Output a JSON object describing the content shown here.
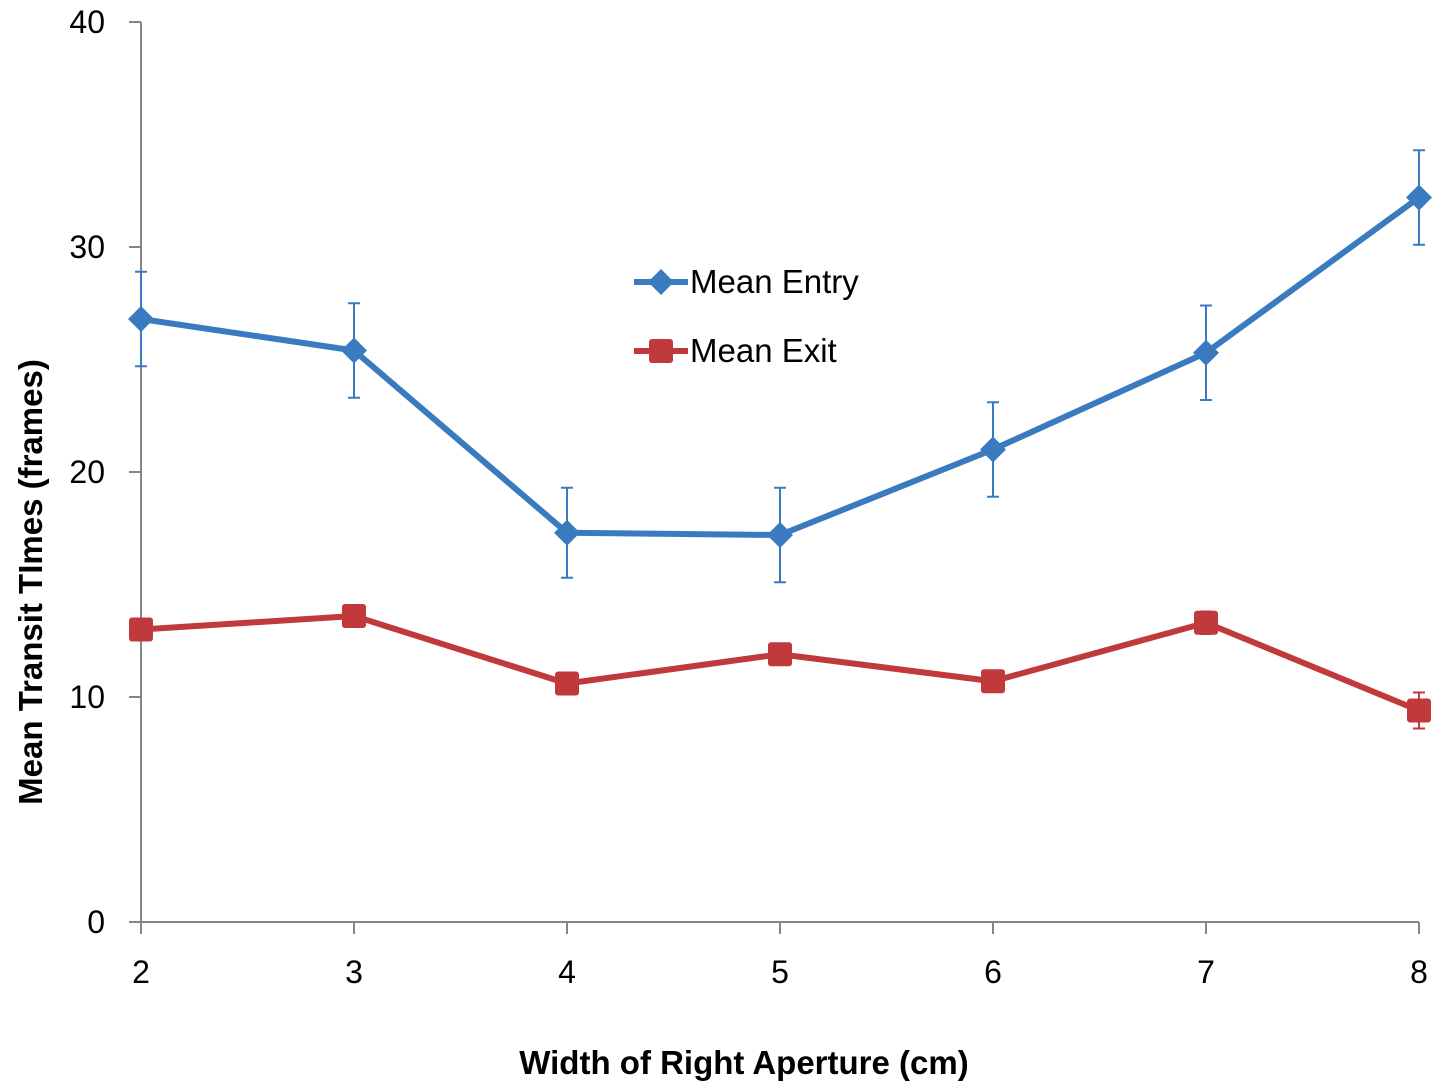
{
  "chart_data": {
    "type": "line",
    "title": "",
    "xlabel": "Width of Right Aperture (cm)",
    "ylabel": "Mean Transit TImes (frames)",
    "x": [
      2,
      3,
      4,
      5,
      6,
      7,
      8
    ],
    "xlim": [
      2,
      8
    ],
    "ylim": [
      0,
      40
    ],
    "x_ticks": [
      "2",
      "3",
      "4",
      "5",
      "6",
      "7",
      "8"
    ],
    "y_ticks": [
      "0",
      "10",
      "20",
      "30",
      "40"
    ],
    "grid": false,
    "legend_position": "center-top",
    "series": [
      {
        "name": "Mean Entry",
        "color": "#3a7bbf",
        "marker": "diamond",
        "values": [
          26.8,
          25.4,
          17.3,
          17.2,
          21.0,
          25.3,
          32.2
        ],
        "error": [
          2.1,
          2.1,
          2.0,
          2.1,
          2.1,
          2.1,
          2.1
        ]
      },
      {
        "name": "Mean Exit",
        "color": "#c0393b",
        "marker": "square",
        "values": [
          13.0,
          13.6,
          10.6,
          11.9,
          10.7,
          13.3,
          9.4
        ],
        "error": [
          0.3,
          0.3,
          0.4,
          0.4,
          0.4,
          0.5,
          0.8
        ]
      }
    ]
  }
}
